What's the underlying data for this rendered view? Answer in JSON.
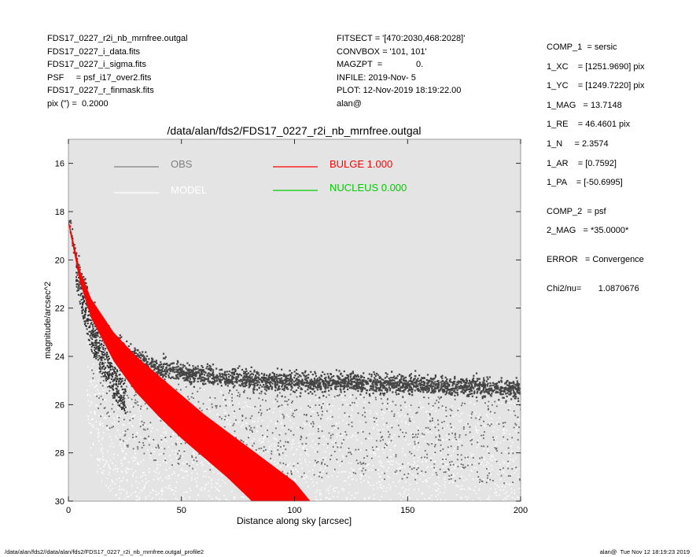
{
  "header_left": [
    "FDS17_0227_r2i_nb_mrnfree.outgal",
    "FDS17_0227_i_data.fits",
    "FDS17_0227_i_sigma.fits",
    "PSF     = psf_i17_over2.fits",
    "FDS17_0227_r_finmask.fits",
    "pix (\") =  0.2000"
  ],
  "header_middle": [
    "FITSECT = '[470:2030,468:2028]'",
    "CONVBOX = '101, 101'",
    "MAGZPT  =              0.",
    "INFILE: 2019-Nov- 5",
    "PLOT: 12-Nov-2019 18:19:22.00",
    "alan@"
  ],
  "header_right": {
    "comp1": [
      "COMP_1  = sersic",
      "1_XC    = [1251.9690] pix",
      "1_YC    = [1249.7220] pix",
      "1_MAG   = 13.7148",
      "1_RE    = 46.4601 pix",
      "1_N     = 2.3574",
      "1_AR    = [0.7592]",
      "1_PA    = [-50.6995]"
    ],
    "comp2": [
      "COMP_2  = psf",
      "2_MAG   = *35.0000*"
    ],
    "error": "ERROR   = Convergence",
    "chi2": "Chi2/nu=       1.0870676"
  },
  "footer": {
    "left": "/data/alan/fds2//data/alan/fds2/FDS17_0227_r2i_nb_mrnfree.outgal_profile2",
    "right": "alan@  Tue Nov 12 18:19:23 2019"
  },
  "colors": {
    "background": "#e4e4e4",
    "obs": "#4a4a4a",
    "model": "#ffffff",
    "bulge": "#ff0000",
    "nucleus": "#00cc00"
  },
  "chart_data": {
    "type": "scatter",
    "title": "/data/alan/fds2/FDS17_0227_r2i_nb_mrnfree.outgal",
    "xlabel": "Distance along sky [arcsec]",
    "ylabel": "magnitude/arcsec^2",
    "xlim": [
      0,
      200
    ],
    "ylim": [
      30,
      15
    ],
    "y_inverted": true,
    "xticks": [
      0,
      50,
      100,
      150,
      200
    ],
    "yticks": [
      16,
      18,
      20,
      22,
      24,
      26,
      28,
      30
    ],
    "grid": false,
    "legend": [
      {
        "label": "OBS",
        "color": "#808080"
      },
      {
        "label": "MODEL",
        "color": "#ffffff"
      },
      {
        "label": "BULGE  1.000",
        "color": "#ff0000"
      },
      {
        "label": "NUCLEUS  0.000",
        "color": "#00cc00"
      }
    ],
    "series": [
      {
        "name": "OBS",
        "description_points": {
          "x": [
            0,
            2,
            5,
            10,
            15,
            20,
            25,
            30,
            40,
            50,
            60,
            80,
            100,
            120,
            150,
            180,
            200
          ],
          "y": [
            18.2,
            19.3,
            20.5,
            21.8,
            22.6,
            23.2,
            23.6,
            23.9,
            24.3,
            24.5,
            24.6,
            24.8,
            24.9,
            24.9,
            25.0,
            25.1,
            25.2
          ]
        }
      },
      {
        "name": "MODEL",
        "description_points": {
          "x": [
            0,
            10,
            20,
            40,
            60,
            80,
            100,
            150,
            200
          ],
          "y": [
            18.3,
            22.0,
            24.0,
            26.2,
            27.8,
            28.9,
            29.8,
            30.0,
            30.0
          ]
        }
      },
      {
        "name": "BULGE  1.000",
        "upper": {
          "x": [
            0,
            5,
            10,
            20,
            30,
            40,
            50,
            60,
            70,
            80,
            90,
            100,
            107
          ],
          "y": [
            18.3,
            20.4,
            21.6,
            23.0,
            24.0,
            24.8,
            25.6,
            26.4,
            27.1,
            27.8,
            28.5,
            29.2,
            30.0
          ]
        },
        "lower": {
          "x": [
            0,
            5,
            10,
            20,
            30,
            40,
            50,
            60,
            70,
            80,
            81
          ],
          "y": [
            18.5,
            20.9,
            22.4,
            24.2,
            25.5,
            26.5,
            27.4,
            28.2,
            29.0,
            29.9,
            30.0
          ]
        }
      },
      {
        "name": "NUCLEUS  0.000",
        "x": [],
        "y": []
      }
    ]
  }
}
